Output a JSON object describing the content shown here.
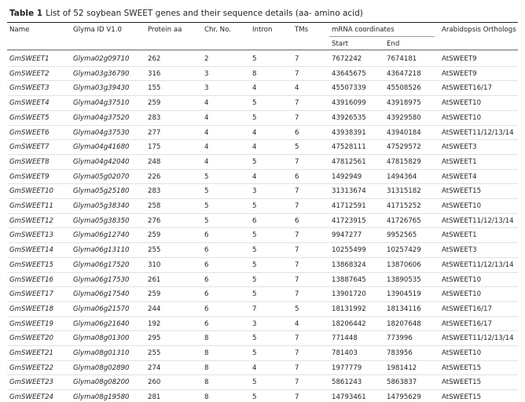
{
  "table": {
    "label": "Table 1",
    "caption": "List of 52 soybean SWEET genes and their sequence details (aa- amino acid)",
    "header": [
      "Name",
      "Glyma ID V1.0",
      "Protein aa",
      "Chr. No.",
      "Intron",
      "TMs",
      "mRNA coordinates",
      "Arabidopsis Orthologs"
    ],
    "subheader": [
      "Start",
      "End"
    ],
    "rows": [
      [
        "GmSWEET1",
        "Glyma02g09710",
        262,
        2,
        5,
        7,
        7672242,
        7674181,
        "AtSWEET9"
      ],
      [
        "GmSWEET2",
        "Glyma03g36790",
        316,
        3,
        8,
        7,
        43645675,
        43647218,
        "AtSWEET9"
      ],
      [
        "GmSWEET3",
        "Glyma03g39430",
        155,
        3,
        4,
        4,
        45507339,
        45508526,
        "AtSWEET16/17"
      ],
      [
        "GmSWEET4",
        "Glyma04g37510",
        259,
        4,
        5,
        7,
        43916099,
        43918975,
        "AtSWEET10"
      ],
      [
        "GmSWEET5",
        "Glyma04g37520",
        283,
        4,
        5,
        7,
        43926535,
        43929580,
        "AtSWEET10"
      ],
      [
        "GmSWEET6",
        "Glyma04g37530",
        277,
        4,
        4,
        6,
        43938391,
        43940184,
        "AtSWEET11/12/13/14"
      ],
      [
        "GmSWEET7",
        "Glyma04g41680",
        175,
        4,
        4,
        5,
        47528111,
        47529572,
        "AtSWEET3"
      ],
      [
        "GmSWEET8",
        "Glyma04g42040",
        248,
        4,
        5,
        7,
        47812561,
        47815829,
        "AtSWEET1"
      ],
      [
        "GmSWEET9",
        "Glyma05g02070",
        226,
        5,
        4,
        6,
        1492949,
        1494364,
        "AtSWEET4"
      ],
      [
        "GmSWEET10",
        "Glyma05g25180",
        283,
        5,
        3,
        7,
        31313674,
        31315182,
        "AtSWEET15"
      ],
      [
        "GmSWEET11",
        "Glyma05g38340",
        258,
        5,
        5,
        7,
        41712591,
        41715252,
        "AtSWEET10"
      ],
      [
        "GmSWEET12",
        "Glyma05g38350",
        276,
        5,
        6,
        6,
        41723915,
        41726765,
        "AtSWEET11/12/13/14"
      ],
      [
        "GmSWEET13",
        "Glyma06g12740",
        259,
        6,
        5,
        7,
        9947277,
        9952565,
        "AtSWEET1"
      ],
      [
        "GmSWEET14",
        "Glyma06g13110",
        255,
        6,
        5,
        7,
        10255499,
        10257429,
        "AtSWEET3"
      ],
      [
        "GmSWEET15",
        "Glyma06g17520",
        310,
        6,
        5,
        7,
        13868324,
        13870606,
        "AtSWEET11/12/13/14"
      ],
      [
        "GmSWEET16",
        "Glyma06g17530",
        261,
        6,
        5,
        7,
        13887645,
        13890535,
        "AtSWEET10"
      ],
      [
        "GmSWEET17",
        "Glyma06g17540",
        259,
        6,
        5,
        7,
        13901720,
        13904519,
        "AtSWEET10"
      ],
      [
        "GmSWEET18",
        "Glyma06g21570",
        244,
        6,
        7,
        5,
        18131992,
        18134116,
        "AtSWEET16/17"
      ],
      [
        "GmSWEET19",
        "Glyma06g21640",
        192,
        6,
        3,
        4,
        18206442,
        18207648,
        "AtSWEET16/17"
      ],
      [
        "GmSWEET20",
        "Glyma08g01300",
        295,
        8,
        5,
        7,
        771448,
        773996,
        "AtSWEET11/12/13/14"
      ],
      [
        "GmSWEET21",
        "Glyma08g01310",
        255,
        8,
        5,
        7,
        781403,
        783956,
        "AtSWEET10"
      ],
      [
        "GmSWEET22",
        "Glyma08g02890",
        274,
        8,
        4,
        7,
        1977779,
        1981412,
        "AtSWEET15"
      ],
      [
        "GmSWEET23",
        "Glyma08g08200",
        260,
        8,
        5,
        7,
        5861243,
        5863837,
        "AtSWEET15"
      ],
      [
        "GmSWEET24",
        "Glyma08g19580",
        281,
        8,
        5,
        7,
        14793461,
        14795629,
        "AtSWEET15"
      ]
    ]
  }
}
